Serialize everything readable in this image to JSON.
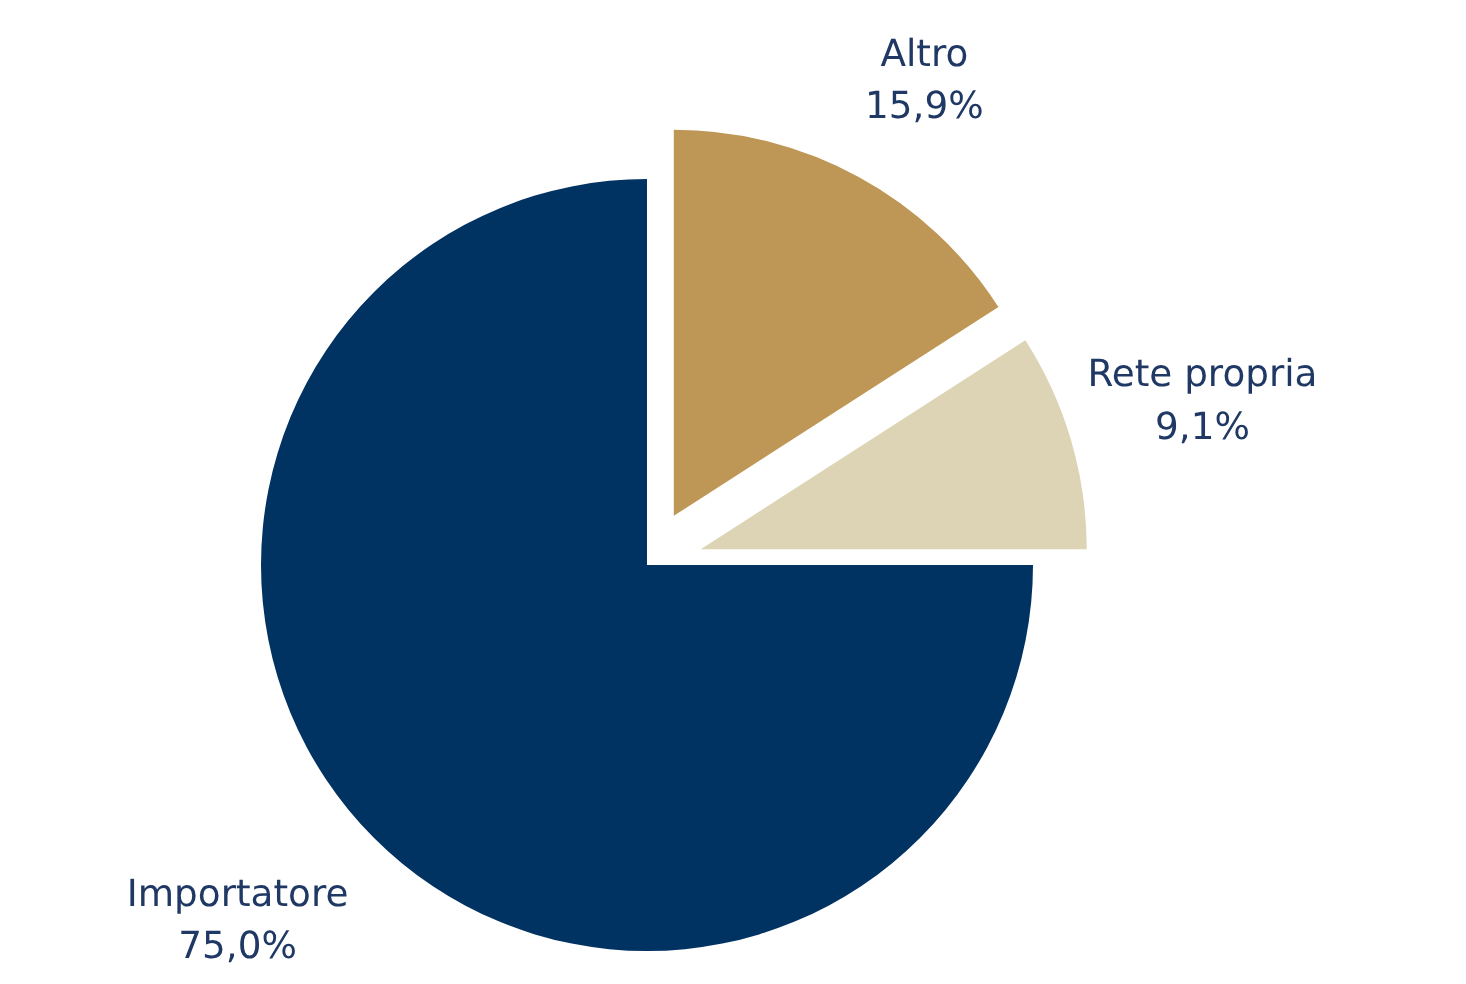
{
  "chart_data": {
    "type": "pie",
    "categories": [
      "Altro",
      "Rete propria",
      "Importatore"
    ],
    "values": [
      15.9,
      9.1,
      75.0
    ],
    "colors": [
      "#be9655",
      "#dcd4b4",
      "#003262"
    ],
    "value_labels": [
      "15,9%",
      "9,1%",
      "75,0%"
    ]
  }
}
